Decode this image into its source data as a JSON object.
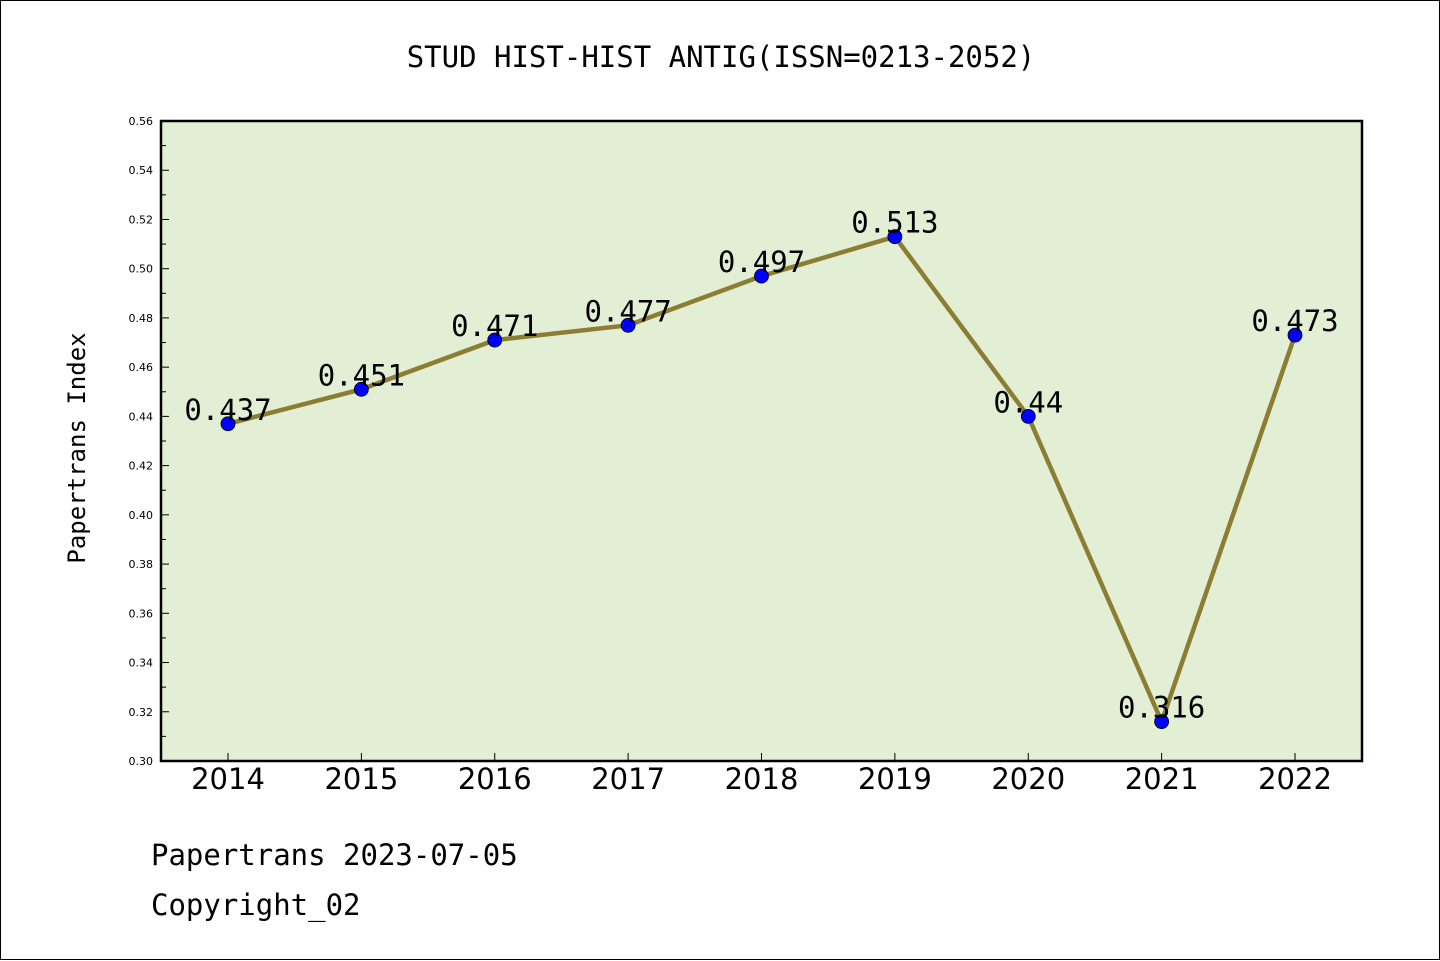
{
  "chart_data": {
    "type": "line",
    "title": "STUD HIST-HIST ANTIG(ISSN=0213-2052)",
    "xlabel": "",
    "ylabel": "Papertrans Index",
    "categories": [
      "2014",
      "2015",
      "2016",
      "2017",
      "2018",
      "2019",
      "2020",
      "2021",
      "2022"
    ],
    "values": [
      0.437,
      0.451,
      0.471,
      0.477,
      0.497,
      0.513,
      0.44,
      0.316,
      0.473
    ],
    "data_labels": [
      "0.437",
      "0.451",
      "0.471",
      "0.477",
      "0.497",
      "0.513",
      "0.44",
      "0.316",
      "0.473"
    ],
    "ylim": [
      0.3,
      0.56
    ],
    "yticks": [
      "0.30",
      "0.32",
      "0.34",
      "0.36",
      "0.38",
      "0.40",
      "0.42",
      "0.44",
      "0.46",
      "0.48",
      "0.50",
      "0.52",
      "0.54",
      "0.56"
    ],
    "grid": false,
    "legend": "none",
    "colors": {
      "plot_background": "#e2efd5",
      "line": "#8b7d32",
      "marker": "#0000ff"
    }
  },
  "footer": {
    "line1": "Papertrans 2023-07-05",
    "line2": "Copyright_02"
  }
}
